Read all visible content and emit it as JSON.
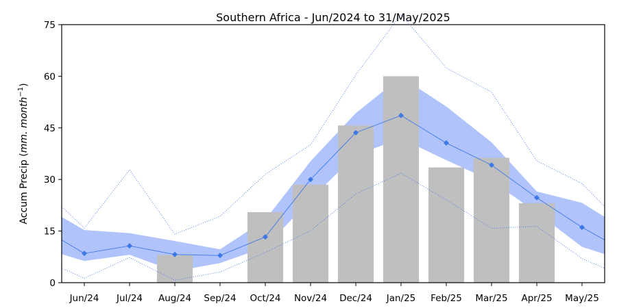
{
  "chart_data": {
    "type": "bar",
    "title": "Southern Africa - Jun/2024 to 31/May/2025",
    "ylabel_main": "Accum Precip (",
    "ylabel_units": "mm. month",
    "ylabel_exp": "−1",
    "ylabel_close": ")",
    "ylim": [
      0,
      75
    ],
    "yticks": [
      0,
      15,
      30,
      45,
      60,
      75
    ],
    "categories": [
      "Jun/24",
      "Jul/24",
      "Aug/24",
      "Sep/24",
      "Oct/24",
      "Nov/24",
      "Dec/24",
      "Jan/25",
      "Feb/25",
      "Mar/25",
      "Apr/25",
      "May/25"
    ],
    "grid": false,
    "series": [
      {
        "kind": "bar",
        "values": [
          null,
          null,
          8,
          null,
          20.5,
          28.5,
          45.7,
          60,
          33.5,
          36.3,
          23.1,
          null
        ]
      },
      {
        "kind": "line",
        "values": [
          8.5,
          10.7,
          8.2,
          7.9,
          13.3,
          30,
          43.6,
          48.6,
          40.6,
          34.2,
          24.7,
          16.1
        ]
      },
      {
        "kind": "band_upper",
        "values": [
          15.3,
          14.4,
          12.1,
          9.7,
          18.3,
          35.3,
          49.3,
          59.8,
          51.2,
          40.8,
          26.5,
          23.2
        ]
      },
      {
        "kind": "band_lower",
        "values": [
          6.3,
          8.1,
          3.3,
          5.7,
          10.3,
          24.2,
          37.1,
          41.9,
          35.6,
          29.6,
          20.4,
          10.4
        ]
      },
      {
        "kind": "max_dotted",
        "values": [
          15.9,
          32.8,
          14.1,
          19.3,
          31.5,
          40.1,
          60.4,
          78,
          62.4,
          55.4,
          35.4,
          28.8
        ]
      },
      {
        "kind": "min_dotted",
        "values": [
          1.3,
          7.3,
          0.7,
          3.1,
          8.8,
          15.1,
          25.8,
          31.8,
          24.1,
          15.8,
          16.4,
          7
        ]
      }
    ],
    "edge_values": {
      "left": {
        "line": 12.4,
        "band_upper": 19.1,
        "band_lower": 8.3,
        "max_dotted": 22.1,
        "min_dotted": 4.2
      },
      "right": {
        "line": 12.4,
        "band_upper": 19.1,
        "band_lower": 8.3,
        "max_dotted": 22.1,
        "min_dotted": 4.2
      }
    },
    "colors": {
      "bar": "#bfbfbf",
      "band": "#b0c4fb",
      "line": "#3e78e6",
      "marker": "#3e78e6",
      "dotted": "#3e78e6"
    }
  }
}
